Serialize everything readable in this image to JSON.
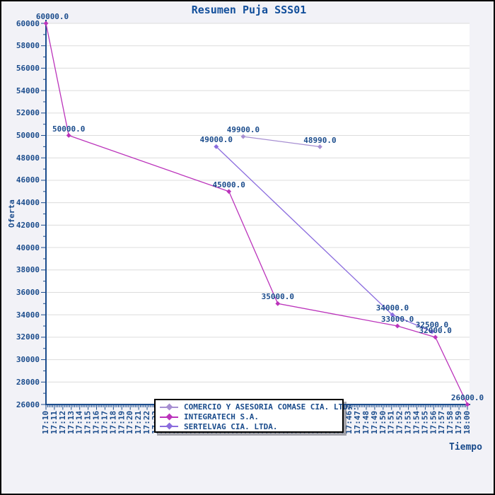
{
  "chart_data": {
    "type": "line",
    "title": "Resumen Puja SSS01",
    "xlabel": "Tiempo",
    "ylabel": "Oferta",
    "x_axis": {
      "start_label": "17:10",
      "end_label": "18:00",
      "tick_interval_minutes": 1,
      "minor_ticks_per_interval": 4,
      "tick_labels": [
        "17:10",
        "17:11",
        "17:12",
        "17:13",
        "17:14",
        "17:15",
        "17:16",
        "17:17",
        "17:18",
        "17:19",
        "17:20",
        "17:21",
        "17:22",
        "17:23",
        "17:24",
        "17:25",
        "17:26",
        "17:27",
        "17:28",
        "17:29",
        "17:30",
        "17:31",
        "17:32",
        "17:33",
        "17:34",
        "17:35",
        "17:36",
        "17:37",
        "17:38",
        "17:39",
        "17:40",
        "17:41",
        "17:42",
        "17:43",
        "17:44",
        "17:45",
        "17:46",
        "17:47",
        "17:48",
        "17:49",
        "17:50",
        "17:51",
        "17:52",
        "17:53",
        "17:54",
        "17:55",
        "17:56",
        "17:57",
        "17:58",
        "17:59",
        "18:00"
      ]
    },
    "y_axis": {
      "min": 26000,
      "max": 60000,
      "tick_interval": 2000,
      "minor_tick_interval": 1000,
      "tick_labels": [
        "26000",
        "28000",
        "30000",
        "32000",
        "34000",
        "36000",
        "38000",
        "40000",
        "42000",
        "44000",
        "46000",
        "48000",
        "50000",
        "52000",
        "54000",
        "56000",
        "58000",
        "60000"
      ]
    },
    "grid": "horizontal-only",
    "legend": {
      "position": "bottom-center-overlay",
      "entries": [
        {
          "label": "COMERCIO Y ASESORIA COMASE CIA. LTDA.",
          "color": "#A78FD2"
        },
        {
          "label": "INTEGRATECH S.A.",
          "color": "#BB33BB"
        },
        {
          "label": "SERTELVAG CIA. LTDA.",
          "color": "#8B6CDE"
        }
      ]
    },
    "series": [
      {
        "name": "COMERCIO Y ASESORIA COMASE CIA. LTDA.",
        "color": "#A78FD2",
        "points": [
          {
            "x_min": 23.4,
            "y": 49900,
            "label": "49900.0"
          },
          {
            "x_min": 32.5,
            "y": 48990,
            "label": "48990.0"
          }
        ]
      },
      {
        "name": "INTEGRATECH S.A.",
        "color": "#BB33BB",
        "points": [
          {
            "x_min": 0,
            "y": 60000,
            "label": "60000.0"
          },
          {
            "x_min": 2.7,
            "y": 50000,
            "label": "50000.0"
          },
          {
            "x_min": 21.7,
            "y": 45000,
            "label": "45000.0"
          },
          {
            "x_min": 27.5,
            "y": 35000,
            "label": "35000.0"
          },
          {
            "x_min": 41.7,
            "y": 33000,
            "label": "33000.0"
          },
          {
            "x_min": 46.2,
            "y": 32000,
            "label": "32000.0"
          },
          {
            "x_min": 50,
            "y": 26000,
            "label": "26000.0"
          }
        ]
      },
      {
        "name": "SERTELVAG CIA. LTDA.",
        "color": "#8B6CDE",
        "points": [
          {
            "x_min": 20.2,
            "y": 49000,
            "label": "49000.0"
          },
          {
            "x_min": 41.1,
            "y": 34000,
            "label": "34000.0"
          },
          {
            "x_min": 45.8,
            "y": 32500,
            "label": "32500.0"
          }
        ]
      }
    ],
    "colors": {
      "text": "#1B4C8C",
      "title_text": "#124F9B",
      "axis": "#1B4C8C",
      "grid": "#DCDCDC",
      "plot_background": "#FFFFFF",
      "background": "#F2F2F7",
      "legend_background": "#FFFFFF",
      "legend_border": "#000000"
    }
  }
}
